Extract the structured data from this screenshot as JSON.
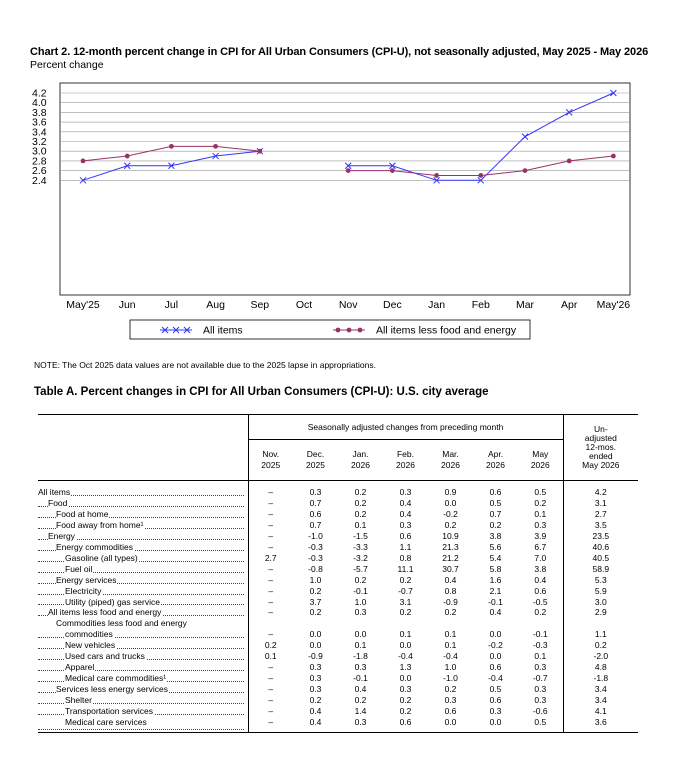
{
  "chart_data": {
    "type": "line",
    "title": "Chart 2. 12-month percent change in CPI for All Urban Consumers (CPI-U), not seasonally adjusted, May 2025 - May 2026",
    "ylabel": "Percent change",
    "xlabel": "",
    "categories": [
      "May'25",
      "Jun",
      "Jul",
      "Aug",
      "Sep",
      "Oct",
      "Nov",
      "Dec",
      "Jan",
      "Feb",
      "Mar",
      "Apr",
      "May'26"
    ],
    "yticks": [
      "4.2",
      "4.0",
      "3.8",
      "3.6",
      "3.4",
      "3.2",
      "3.0",
      "2.8",
      "2.6",
      "2.4"
    ],
    "ylim": [
      2.2,
      4.2
    ],
    "grid": true,
    "legend_position": "bottom",
    "series": [
      {
        "name": "All items",
        "color": "#3333ff",
        "marker": "x",
        "values": [
          2.4,
          2.7,
          2.7,
          2.9,
          3.0,
          null,
          2.7,
          2.7,
          2.4,
          2.4,
          3.3,
          3.8,
          4.2
        ]
      },
      {
        "name": "All items less food and energy",
        "color": "#993366",
        "marker": "dot",
        "values": [
          2.8,
          2.9,
          3.1,
          3.1,
          3.0,
          null,
          2.6,
          2.6,
          2.5,
          2.5,
          2.6,
          2.8,
          2.9
        ]
      }
    ]
  },
  "note": "NOTE: The Oct 2025 data values are not available due to the 2025 lapse in appropriations.",
  "table": {
    "title": "Table A. Percent changes in CPI for All Urban Consumers (CPI-U): U.S. city average",
    "group_header": "Seasonally adjusted changes from preceding month",
    "unadjusted_header": [
      "Un-",
      "adjusted",
      "12-mos.",
      "ended",
      "May 2026"
    ],
    "columns": [
      [
        "Nov.",
        "2025"
      ],
      [
        "Dec.",
        "2025"
      ],
      [
        "Jan.",
        "2026"
      ],
      [
        "Feb.",
        "2026"
      ],
      [
        "Mar.",
        "2026"
      ],
      [
        "Apr.",
        "2026"
      ],
      [
        "May",
        "2026"
      ]
    ],
    "rows": [
      {
        "label": "All items",
        "indent": 0,
        "values": [
          "–",
          "0.3",
          "0.2",
          "0.3",
          "0.9",
          "0.6",
          "0.5",
          "4.2"
        ]
      },
      {
        "label": "Food",
        "indent": 1,
        "values": [
          "–",
          "0.7",
          "0.2",
          "0.4",
          "0.0",
          "0.5",
          "0.2",
          "3.1"
        ]
      },
      {
        "label": "Food at home",
        "indent": 2,
        "values": [
          "–",
          "0.6",
          "0.2",
          "0.4",
          "-0.2",
          "0.7",
          "0.1",
          "2.7"
        ]
      },
      {
        "label": "Food away from home¹",
        "indent": 2,
        "values": [
          "–",
          "0.7",
          "0.1",
          "0.3",
          "0.2",
          "0.2",
          "0.3",
          "3.5"
        ]
      },
      {
        "label": "Energy",
        "indent": 1,
        "values": [
          "–",
          "-1.0",
          "-1.5",
          "0.6",
          "10.9",
          "3.8",
          "3.9",
          "23.5"
        ]
      },
      {
        "label": "Energy commodities",
        "indent": 2,
        "values": [
          "–",
          "-0.3",
          "-3.3",
          "1.1",
          "21.3",
          "5.6",
          "6.7",
          "40.6"
        ]
      },
      {
        "label": "Gasoline (all types)",
        "indent": 3,
        "values": [
          "2.7",
          "-0.3",
          "-3.2",
          "0.8",
          "21.2",
          "5.4",
          "7.0",
          "40.5"
        ]
      },
      {
        "label": "Fuel oil",
        "indent": 3,
        "values": [
          "–",
          "-0.8",
          "-5.7",
          "11.1",
          "30.7",
          "5.8",
          "3.8",
          "58.9"
        ]
      },
      {
        "label": "Energy services",
        "indent": 2,
        "values": [
          "–",
          "1.0",
          "0.2",
          "0.2",
          "0.4",
          "1.6",
          "0.4",
          "5.3"
        ]
      },
      {
        "label": "Electricity",
        "indent": 3,
        "values": [
          "–",
          "0.2",
          "-0.1",
          "-0.7",
          "0.8",
          "2.1",
          "0.6",
          "5.9"
        ]
      },
      {
        "label": "Utility (piped) gas service",
        "indent": 3,
        "values": [
          "–",
          "3.7",
          "1.0",
          "3.1",
          "-0.9",
          "-0.1",
          "-0.5",
          "3.0"
        ]
      },
      {
        "label": "All items less food and energy",
        "indent": 1,
        "values": [
          "–",
          "0.2",
          "0.3",
          "0.2",
          "0.2",
          "0.4",
          "0.2",
          "2.9"
        ]
      },
      {
        "label": "Commodities less food and energy",
        "indent": 2,
        "values": [
          "",
          "",
          "",
          "",
          "",
          "",
          "",
          ""
        ]
      },
      {
        "label": "commodities",
        "indent": 3,
        "values": [
          "–",
          "0.0",
          "0.0",
          "0.1",
          "0.1",
          "0.0",
          "-0.1",
          "1.1"
        ]
      },
      {
        "label": "New vehicles",
        "indent": 3,
        "values": [
          "0.2",
          "0.0",
          "0.1",
          "0.0",
          "0.1",
          "-0.2",
          "-0.3",
          "0.2"
        ]
      },
      {
        "label": "Used cars and trucks",
        "indent": 3,
        "values": [
          "0.1",
          "-0.9",
          "-1.8",
          "-0.4",
          "-0.4",
          "0.0",
          "0.1",
          "-2.0"
        ]
      },
      {
        "label": "Apparel",
        "indent": 3,
        "values": [
          "–",
          "0.3",
          "0.3",
          "1.3",
          "1.0",
          "0.6",
          "0.3",
          "4.8"
        ]
      },
      {
        "label": "Medical care commodities¹",
        "indent": 3,
        "values": [
          "–",
          "0.3",
          "-0.1",
          "0.0",
          "-1.0",
          "-0.4",
          "-0.7",
          "-1.8"
        ]
      },
      {
        "label": "Services less energy services",
        "indent": 2,
        "values": [
          "–",
          "0.3",
          "0.4",
          "0.3",
          "0.2",
          "0.5",
          "0.3",
          "3.4"
        ]
      },
      {
        "label": "Shelter",
        "indent": 3,
        "values": [
          "–",
          "0.2",
          "0.2",
          "0.2",
          "0.3",
          "0.6",
          "0.3",
          "3.4"
        ]
      },
      {
        "label": "Transportation services",
        "indent": 3,
        "values": [
          "–",
          "0.4",
          "1.4",
          "0.2",
          "0.6",
          "0.3",
          "-0.6",
          "4.1"
        ]
      },
      {
        "label": "Medical care services",
        "indent": 3,
        "values": [
          "–",
          "0.4",
          "0.3",
          "0.6",
          "0.0",
          "0.0",
          "0.5",
          "3.6"
        ]
      }
    ]
  }
}
